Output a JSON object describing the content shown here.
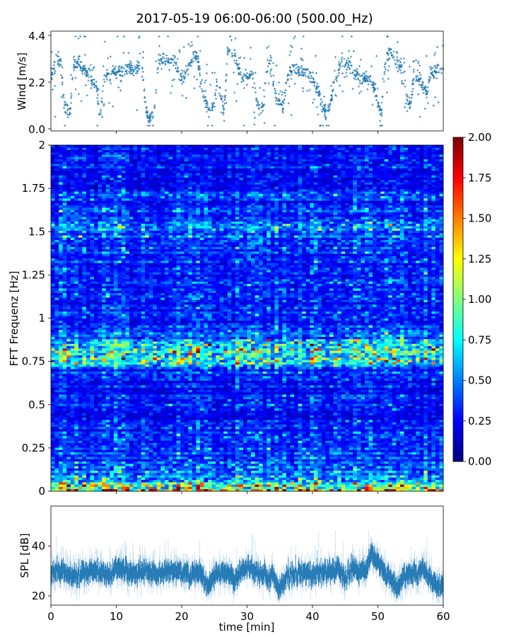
{
  "chart_data": [
    {
      "type": "scatter",
      "title": "2017-05-19 06:00-06:00 (500.00_Hz)",
      "ylabel": "Wind [m/s]",
      "xlim": [
        0,
        60
      ],
      "ylim": [
        -0.1,
        4.6
      ],
      "yticks": [
        "0.0",
        "2.2",
        "4.4"
      ],
      "color": "#1f77b4",
      "x_step_min": 0.5,
      "wind_trend": [
        2.6,
        2.8,
        3.0,
        3.3,
        1.1,
        1.0,
        0.9,
        3.0,
        3.1,
        3.0,
        2.8,
        2.6,
        2.6,
        2.2,
        2.0,
        0.4,
        2.2,
        2.5,
        2.6,
        2.7,
        2.7,
        2.7,
        2.8,
        2.8,
        2.9,
        2.8,
        2.8,
        2.9,
        2.9,
        1.0,
        0.4,
        0.6,
        1.2,
        3.3,
        3.3,
        3.2,
        3.2,
        3.3,
        3.2,
        2.6,
        2.4,
        2.5,
        2.9,
        3.2,
        3.5,
        3.3,
        2.0,
        1.5,
        0.9,
        0.8,
        1.5,
        2.2,
        1.6,
        0.7,
        3.6,
        3.8,
        3.5,
        3.0,
        2.6,
        2.4,
        2.5,
        2.6,
        2.4,
        1.2,
        1.0,
        1.1,
        2.8,
        3.1,
        2.0,
        1.6,
        1.2,
        1.0,
        2.2,
        2.6,
        2.9,
        2.8,
        2.7,
        2.6,
        2.6,
        2.5,
        2.4,
        2.0,
        1.7,
        1.0,
        0.8,
        1.0,
        1.6,
        2.4,
        2.6,
        3.2,
        3.1,
        3.0,
        2.8,
        2.6,
        2.5,
        2.5,
        2.4,
        2.3,
        2.2,
        2.0,
        1.2,
        0.8,
        2.6,
        3.5,
        3.6,
        3.3,
        3.1,
        2.9,
        2.6,
        1.4,
        1.1,
        2.4,
        2.4,
        2.3,
        2.0,
        1.6,
        2.6,
        2.6,
        2.7,
        2.8,
        2.8
      ]
    },
    {
      "type": "heatmap",
      "ylabel": "FFT Frequenz [Hz]",
      "xlim": [
        0,
        60
      ],
      "ylim": [
        0,
        2
      ],
      "yticks": [
        "0",
        "0.25",
        "0.5",
        "0.75",
        "1",
        "1.25",
        "1.5",
        "1.75",
        "2"
      ],
      "colormap": "jet",
      "clim": [
        0,
        2
      ],
      "colorbar_ticks": [
        "0.00",
        "0.25",
        "0.50",
        "0.75",
        "1.00",
        "1.25",
        "1.50",
        "1.75",
        "2.00"
      ],
      "freq_profile_hz": [
        0,
        0.02,
        0.05,
        0.1,
        0.2,
        0.3,
        0.45,
        0.6,
        0.7,
        0.75,
        0.8,
        0.85,
        0.9,
        1.0,
        1.2,
        1.4,
        1.5,
        1.6,
        1.8,
        2.0
      ],
      "freq_profile_level": [
        1.1,
        1.3,
        0.8,
        0.5,
        0.38,
        0.3,
        0.28,
        0.3,
        0.35,
        0.8,
        1.0,
        0.75,
        0.4,
        0.32,
        0.3,
        0.35,
        0.45,
        0.35,
        0.3,
        0.25
      ]
    },
    {
      "type": "line",
      "ylabel": "SPL [dB]",
      "xlabel": "time [min]",
      "xlim": [
        0,
        60
      ],
      "ylim": [
        16.3,
        56
      ],
      "xticks": [
        "0",
        "10",
        "20",
        "30",
        "40",
        "50",
        "60"
      ],
      "yticks": [
        "20",
        "40"
      ],
      "color": "#1f77b4",
      "x_step_min": 1,
      "spl_trend": [
        29,
        30,
        29,
        28,
        28,
        29,
        30,
        30,
        29,
        28,
        30,
        31,
        29,
        29,
        30,
        30,
        29,
        29,
        30,
        30,
        29,
        28,
        29,
        29,
        24,
        28,
        29,
        29,
        26,
        30,
        31,
        30,
        29,
        28,
        28,
        22,
        28,
        29,
        29,
        29,
        28,
        29,
        29,
        30,
        30,
        27,
        30,
        30,
        30,
        37,
        34,
        29,
        27,
        23,
        28,
        29,
        29,
        30,
        27,
        24,
        24
      ]
    }
  ]
}
